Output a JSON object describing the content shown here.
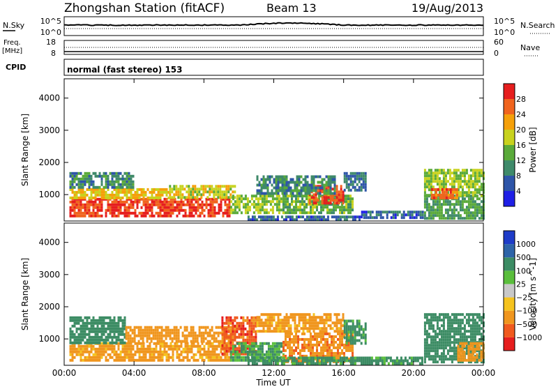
{
  "header": {
    "station": "Zhongshan Station (fitACF)",
    "beam": "Beam 13",
    "date": "19/Aug/2013"
  },
  "top_panels": {
    "nsky_label": "N.Sky",
    "nsky_ticks": [
      "10^5",
      "10^0"
    ],
    "nsearch_label": "N.Search",
    "nsearch_ticks": [
      "10^5",
      "10^0"
    ],
    "freq_label": "Freq.",
    "freq_unit": "[MHz]",
    "freq_ticks": [
      "18",
      "8"
    ],
    "nave_label": "Nave",
    "nave_ticks": [
      "60",
      "0"
    ],
    "cpid_label": "CPID",
    "cpid_text": "normal (fast stereo) 153"
  },
  "colors": {
    "power": [
      "#1f1fe6",
      "#2e55a8",
      "#3f8a6a",
      "#5aaa3a",
      "#c8d21e",
      "#f5a00a",
      "#f0641e",
      "#e61e1e"
    ],
    "velocity": [
      "#e61e1e",
      "#f05a1e",
      "#f0961e",
      "#f5c31e",
      "#c8c8c8",
      "#5abe3c",
      "#3c8c64",
      "#2e64a8",
      "#1e3cc8"
    ],
    "background": "#ffffff"
  },
  "chart_data": [
    {
      "type": "heatmap",
      "name": "power",
      "xlabel": "",
      "ylabel": "Slant Range [km]",
      "xlim": [
        0,
        24
      ],
      "ylim": [
        180,
        4600
      ],
      "yticks": [
        "1000",
        "2000",
        "3000",
        "4000"
      ],
      "colorbar_label": "Power [dB]",
      "colorbar_ticks": [
        "4",
        "8",
        "12",
        "16",
        "20",
        "24",
        "28"
      ],
      "colorbar_range": [
        0,
        32
      ],
      "regions": [
        {
          "t": [
            0.3,
            9.5
          ],
          "r": [
            300,
            900
          ],
          "v": 28
        },
        {
          "t": [
            0.3,
            6.0
          ],
          "r": [
            900,
            1200
          ],
          "v": 20
        },
        {
          "t": [
            0.3,
            4.0
          ],
          "r": [
            1200,
            1700
          ],
          "v": 10
        },
        {
          "t": [
            6.0,
            9.8
          ],
          "r": [
            900,
            1300
          ],
          "v": 18
        },
        {
          "t": [
            9.5,
            12.5
          ],
          "r": [
            400,
            1000
          ],
          "v": 16
        },
        {
          "t": [
            12.5,
            16.5
          ],
          "r": [
            400,
            1000
          ],
          "v": 14
        },
        {
          "t": [
            14.0,
            16.0
          ],
          "r": [
            700,
            1300
          ],
          "v": 28
        },
        {
          "t": [
            11.0,
            15.5
          ],
          "r": [
            1000,
            1600
          ],
          "v": 10
        },
        {
          "t": [
            16.0,
            17.2
          ],
          "r": [
            1100,
            1700
          ],
          "v": 8
        },
        {
          "t": [
            10.5,
            17.0
          ],
          "r": [
            200,
            350
          ],
          "v": 7
        },
        {
          "t": [
            17.0,
            20.5
          ],
          "r": [
            300,
            500
          ],
          "v": 7
        },
        {
          "t": [
            20.6,
            24.0
          ],
          "r": [
            300,
            1000
          ],
          "v": 12
        },
        {
          "t": [
            20.6,
            24.0
          ],
          "r": [
            1000,
            1800
          ],
          "v": 16
        },
        {
          "t": [
            21.0,
            22.5
          ],
          "r": [
            900,
            1200
          ],
          "v": 26
        }
      ]
    },
    {
      "type": "heatmap",
      "name": "velocity",
      "xlabel": "Time UT",
      "ylabel": "Slant Range [km]",
      "xlim": [
        0,
        24
      ],
      "ylim": [
        180,
        4600
      ],
      "xticks": [
        "00:00",
        "04:00",
        "08:00",
        "12:00",
        "16:00",
        "20:00",
        "00:00"
      ],
      "yticks": [
        "1000",
        "2000",
        "3000",
        "4000"
      ],
      "colorbar_label": "Velocity [m s^-1]",
      "colorbar_ticks": [
        "1000",
        "500",
        "100",
        "25",
        "−25",
        "−100",
        "−500",
        "−1000"
      ],
      "regions": [
        {
          "t": [
            0.3,
            9.5
          ],
          "r": [
            300,
            900
          ],
          "v": -150
        },
        {
          "t": [
            0.3,
            3.5
          ],
          "r": [
            900,
            1700
          ],
          "v": 300
        },
        {
          "t": [
            3.5,
            9.8
          ],
          "r": [
            900,
            1400
          ],
          "v": -200
        },
        {
          "t": [
            9.0,
            11.0
          ],
          "r": [
            500,
            1700
          ],
          "v": -800
        },
        {
          "t": [
            9.5,
            12.5
          ],
          "r": [
            300,
            900
          ],
          "v": 100
        },
        {
          "t": [
            12.5,
            16.5
          ],
          "r": [
            300,
            1200
          ],
          "v": -400
        },
        {
          "t": [
            11.0,
            16.0
          ],
          "r": [
            1200,
            1800
          ],
          "v": -150
        },
        {
          "t": [
            16.0,
            17.2
          ],
          "r": [
            900,
            1600
          ],
          "v": 150
        },
        {
          "t": [
            10.5,
            20.5
          ],
          "r": [
            200,
            450
          ],
          "v": 150
        },
        {
          "t": [
            20.6,
            24.0
          ],
          "r": [
            300,
            1800
          ],
          "v": 300
        },
        {
          "t": [
            22.5,
            24.0
          ],
          "r": [
            300,
            900
          ],
          "v": -300
        }
      ]
    }
  ]
}
